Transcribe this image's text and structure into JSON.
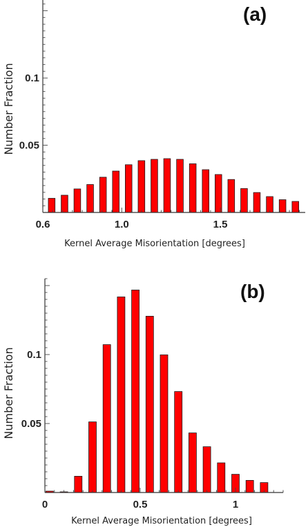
{
  "chart_data": [
    {
      "type": "bar",
      "panel_label": "(a)",
      "xlabel": "Kernel Average Misorientation [degrees]",
      "ylabel": "Number Fraction",
      "xlim": [
        0.6,
        1.93
      ],
      "ylim": [
        0,
        0.158
      ],
      "xticks": [
        0.6,
        1.0,
        1.5
      ],
      "xtick_labels": [
        "0.6",
        "1.0",
        "1.5"
      ],
      "yticks": [
        0.05,
        0.1
      ],
      "ytick_labels": [
        "0.05",
        "0.1"
      ],
      "bar_width": 0.034,
      "color": "#ff0000",
      "x": [
        0.645,
        0.71,
        0.775,
        0.84,
        0.905,
        0.97,
        1.035,
        1.1,
        1.165,
        1.23,
        1.295,
        1.36,
        1.425,
        1.49,
        1.555,
        1.62,
        1.685,
        1.75,
        1.815,
        1.88
      ],
      "values": [
        0.0105,
        0.0128,
        0.0175,
        0.0208,
        0.0262,
        0.0308,
        0.0355,
        0.0385,
        0.0395,
        0.04,
        0.0395,
        0.0362,
        0.0318,
        0.0282,
        0.0245,
        0.0178,
        0.0148,
        0.0118,
        0.0095,
        0.0082
      ]
    },
    {
      "type": "bar",
      "panel_label": "(b)",
      "xlabel": "Kernel Average Misorientation [degrees]",
      "ylabel": "Number Fraction",
      "xlim": [
        0,
        1.25
      ],
      "ylim": [
        0,
        0.155
      ],
      "xticks": [
        0,
        0.5,
        1
      ],
      "xtick_labels": [
        "0",
        "0.5",
        "1"
      ],
      "yticks": [
        0.05,
        0.1
      ],
      "ytick_labels": [
        "0.05",
        "0.1"
      ],
      "bar_width": 0.04,
      "color": "#ff0000",
      "x": [
        0.025,
        0.1,
        0.175,
        0.25,
        0.325,
        0.4,
        0.475,
        0.55,
        0.625,
        0.7,
        0.775,
        0.85,
        0.925,
        1.0,
        1.075,
        1.15
      ],
      "values": [
        0.001,
        0.0005,
        0.0118,
        0.0512,
        0.1072,
        0.1418,
        0.1468,
        0.1278,
        0.0998,
        0.0732,
        0.0432,
        0.0332,
        0.0215,
        0.0132,
        0.0088,
        0.0072
      ]
    }
  ]
}
